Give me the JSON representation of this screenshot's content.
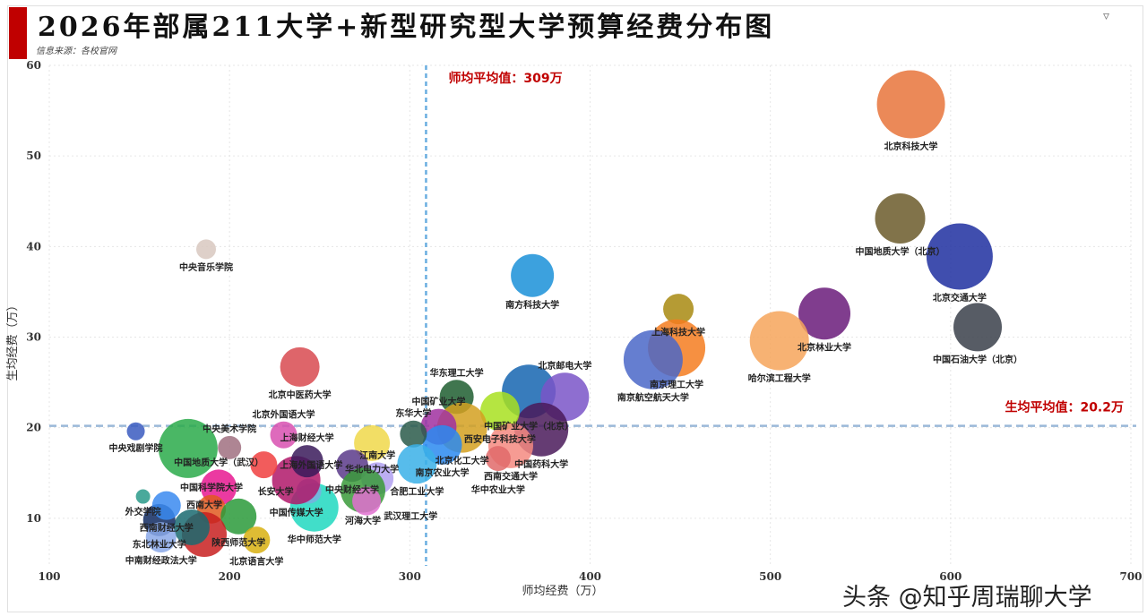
{
  "header": {
    "title": "2026年部属211大学+新型研究型大学预算经费分布图",
    "source": "信息来源：各校官网",
    "filter_icon": "filter-icon"
  },
  "watermark": "头条 @知乎周瑞聊大学",
  "chart_data": {
    "type": "scatter",
    "title": "2026年部属211大学+新型研究型大学预算经费分布图",
    "xlabel": "师均经费（万）",
    "ylabel": "生均经费（万）",
    "xlim": [
      100,
      700
    ],
    "ylim": [
      0,
      60
    ],
    "xticks": [
      100,
      200,
      300,
      400,
      500,
      600,
      700
    ],
    "yticks": [
      10,
      20,
      30,
      40,
      50,
      60
    ],
    "grid": true,
    "reference_lines": {
      "x": 309,
      "x_label": "师均平均值：309万",
      "y": 20.2,
      "y_label": "生均平均值：20.2万"
    },
    "points": [
      {
        "name": "北京科技大学",
        "x": 578,
        "y": 55.7,
        "size": 38,
        "color": "#e8743b"
      },
      {
        "name": "中国地质大学（北京）",
        "x": 572,
        "y": 43.1,
        "size": 28,
        "color": "#6b5a2a"
      },
      {
        "name": "北京交通大学",
        "x": 605,
        "y": 38.9,
        "size": 37,
        "color": "#1f2fa0"
      },
      {
        "name": "中国石油大学（北京）",
        "x": 615,
        "y": 31.1,
        "size": 27,
        "color": "#3a3f4a"
      },
      {
        "name": "北京林业大学",
        "x": 530,
        "y": 32.6,
        "size": 29,
        "color": "#6a1b7a"
      },
      {
        "name": "哈尔滨工程大学",
        "x": 505,
        "y": 29.6,
        "size": 33,
        "color": "#f6a55a"
      },
      {
        "name": "上海科技大学",
        "x": 449,
        "y": 33.1,
        "size": 17,
        "color": "#a88a10"
      },
      {
        "name": "南京理工大学",
        "x": 448,
        "y": 28.8,
        "size": 32,
        "color": "#f57c20"
      },
      {
        "name": "南京航空航天大学",
        "x": 435,
        "y": 27.5,
        "size": 33,
        "color": "#4a67c8"
      },
      {
        "name": "南方科技大学",
        "x": 368,
        "y": 36.8,
        "size": 24,
        "color": "#1a90d8"
      },
      {
        "name": "中国矿业大学（北京）",
        "x": 366,
        "y": 24.0,
        "size": 30,
        "color": "#1565b0"
      },
      {
        "name": "北京邮电大学",
        "x": 386,
        "y": 23.4,
        "size": 27,
        "color": "#7a55c8"
      },
      {
        "name": "华东理工大学",
        "x": 326,
        "y": 23.4,
        "size": 19,
        "color": "#1e5e30"
      },
      {
        "name": "中国药科大学",
        "x": 373,
        "y": 19.8,
        "size": 30,
        "color": "#4a1a5a"
      },
      {
        "name": "西安电子科技大学",
        "x": 350,
        "y": 21.8,
        "size": 22,
        "color": "#a8e020"
      },
      {
        "name": "北京化工大学",
        "x": 329,
        "y": 20.0,
        "size": 28,
        "color": "#d4a020"
      },
      {
        "name": "中国矿业大学",
        "x": 316,
        "y": 20.1,
        "size": 20,
        "color": "#a030a0"
      },
      {
        "name": "西南交通大学",
        "x": 356,
        "y": 18.0,
        "size": 25,
        "color": "#f58a80"
      },
      {
        "name": "华中农业大学",
        "x": 349,
        "y": 16.6,
        "size": 14,
        "color": "#e06a6a"
      },
      {
        "name": "南京农业大学",
        "x": 318,
        "y": 18.1,
        "size": 22,
        "color": "#2a8af0"
      },
      {
        "name": "东华大学",
        "x": 302,
        "y": 19.3,
        "size": 15,
        "color": "#2a5a4a"
      },
      {
        "name": "合肥工业大学",
        "x": 304,
        "y": 16.0,
        "size": 22,
        "color": "#3ab0e8"
      },
      {
        "name": "华北电力大学",
        "x": 279,
        "y": 18.3,
        "size": 20,
        "color": "#f0d84a"
      },
      {
        "name": "中央财经大学",
        "x": 268,
        "y": 15.8,
        "size": 18,
        "color": "#5a3a8a"
      },
      {
        "name": "江南大学",
        "x": 282,
        "y": 14.4,
        "size": 18,
        "color": "#b0a0f0"
      },
      {
        "name": "河海大学",
        "x": 274,
        "y": 13.1,
        "size": 25,
        "color": "#3a9a3a"
      },
      {
        "name": "武汉理工大学",
        "x": 276,
        "y": 11.9,
        "size": 16,
        "color": "#e070d0"
      },
      {
        "name": "华中师范大学",
        "x": 247,
        "y": 11.2,
        "size": 27,
        "color": "#20d8c0"
      },
      {
        "name": "长安大学",
        "x": 244,
        "y": 13.0,
        "size": 14,
        "color": "#7ab0e0"
      },
      {
        "name": "中国传媒大学",
        "x": 237,
        "y": 14.2,
        "size": 27,
        "color": "#b0186a"
      },
      {
        "name": "上海财经大学",
        "x": 243,
        "y": 16.3,
        "size": 18,
        "color": "#3a1a5a"
      },
      {
        "name": "上海外国语大学",
        "x": 219,
        "y": 15.9,
        "size": 15,
        "color": "#f04040"
      },
      {
        "name": "北京外国语大学",
        "x": 230,
        "y": 19.2,
        "size": 15,
        "color": "#d850b0"
      },
      {
        "name": "中央美术学院",
        "x": 200,
        "y": 17.8,
        "size": 13,
        "color": "#a07080"
      },
      {
        "name": "中央戏剧学院",
        "x": 148,
        "y": 19.6,
        "size": 10,
        "color": "#3a5ac0"
      },
      {
        "name": "",
        "x": 177,
        "y": 17.7,
        "size": 33,
        "color": "#2aaa4a"
      },
      {
        "name": "北京中医药大学",
        "x": 239,
        "y": 26.7,
        "size": 22,
        "color": "#d84a50"
      },
      {
        "name": "中央音乐学院",
        "x": 187,
        "y": 39.7,
        "size": 11,
        "color": "#d8c8c0"
      },
      {
        "name": "中国地质大学（武汉）",
        "x": 194,
        "y": 13.4,
        "size": 20,
        "color": "#e81890"
      },
      {
        "name": "中国科学院大学",
        "x": 190,
        "y": 11.0,
        "size": 16,
        "color": "#e05a20"
      },
      {
        "name": "陕西师范大学",
        "x": 205,
        "y": 10.2,
        "size": 20,
        "color": "#2a9a3a"
      },
      {
        "name": "西南大学",
        "x": 186,
        "y": 8.2,
        "size": 25,
        "color": "#c82020"
      },
      {
        "name": "",
        "x": 179,
        "y": 9.0,
        "size": 20,
        "color": "#1a6a70"
      },
      {
        "name": "东北林业大学",
        "x": 161,
        "y": 9.8,
        "size": 18,
        "color": "#102a60"
      },
      {
        "name": "西南财经大学",
        "x": 165,
        "y": 11.4,
        "size": 16,
        "color": "#3a8af0"
      },
      {
        "name": "外交学院",
        "x": 152,
        "y": 12.4,
        "size": 8,
        "color": "#2a9a8a"
      },
      {
        "name": "中南财经政法大学",
        "x": 162,
        "y": 7.9,
        "size": 17,
        "color": "#8aa8e8"
      },
      {
        "name": "北京语言大学",
        "x": 215,
        "y": 7.6,
        "size": 15,
        "color": "#d8b010"
      }
    ]
  }
}
